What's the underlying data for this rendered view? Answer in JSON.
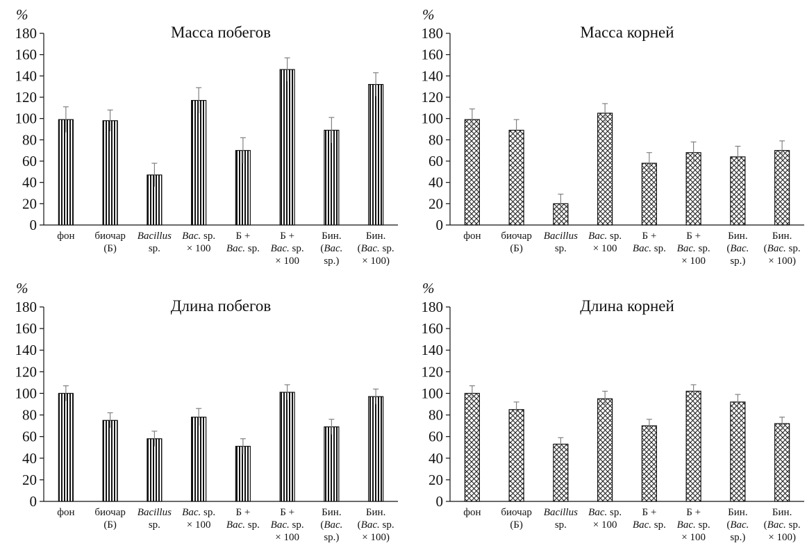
{
  "styles": {
    "bar_fill": "#ffffff",
    "stroke": "#111111",
    "error_bar": "#777777"
  },
  "category_labels": [
    [
      {
        "t": "фон",
        "i": false
      }
    ],
    [
      {
        "t": "биочар",
        "i": false
      },
      {
        "t": "(Б)",
        "i": false
      }
    ],
    [
      {
        "t": "Bacillus",
        "i": true
      },
      {
        "t": "sp.",
        "i": false
      }
    ],
    [
      {
        "t": "Bac.",
        "i": true,
        "r": " sp."
      },
      {
        "t": "× 100",
        "i": false
      }
    ],
    [
      {
        "t": "Б +",
        "i": false
      },
      {
        "t": "Bac.",
        "i": true,
        "r": " sp."
      }
    ],
    [
      {
        "t": "Б +",
        "i": false
      },
      {
        "t": "Bac.",
        "i": true,
        "r": " sp."
      },
      {
        "t": "× 100",
        "i": false
      }
    ],
    [
      {
        "t": "Бин.",
        "i": false
      },
      {
        "t": "(",
        "i": false,
        "r2": "Bac.",
        "r3": ""
      },
      {
        "t": "sp.)",
        "i": false
      }
    ],
    [
      {
        "t": "Бин.",
        "i": false
      },
      {
        "t": "(",
        "i": false,
        "r2": "Bac.",
        "r3": " sp."
      },
      {
        "t": "× 100)",
        "i": false
      }
    ]
  ],
  "chart_data": [
    {
      "type": "bar",
      "title": "Масса побегов",
      "ylabel": "%",
      "ylim": [
        0,
        180
      ],
      "yticks": [
        0,
        20,
        40,
        60,
        80,
        100,
        120,
        140,
        160,
        180
      ],
      "pattern": "vertical-stripes",
      "categories": [
        "фон",
        "биочар (Б)",
        "Bacillus sp.",
        "Bac. sp. × 100",
        "Б + Bac. sp.",
        "Б + Bac. sp. × 100",
        "Бин. (Bac. sp.)",
        "Бин. (Bac. sp. × 100)"
      ],
      "values": [
        99,
        98,
        47,
        117,
        70,
        146,
        89,
        132
      ],
      "errors": [
        12,
        10,
        11,
        12,
        12,
        11,
        12,
        11
      ]
    },
    {
      "type": "bar",
      "title": "Масса корней",
      "ylabel": "%",
      "ylim": [
        0,
        180
      ],
      "yticks": [
        0,
        20,
        40,
        60,
        80,
        100,
        120,
        140,
        160,
        180
      ],
      "pattern": "crosshatch",
      "categories": [
        "фон",
        "биочар (Б)",
        "Bacillus sp.",
        "Bac. sp. × 100",
        "Б + Bac. sp.",
        "Б + Bac. sp. × 100",
        "Бин. (Bac. sp.)",
        "Бин. (Bac. sp. × 100)"
      ],
      "values": [
        99,
        89,
        20,
        105,
        58,
        68,
        64,
        70
      ],
      "errors": [
        10,
        10,
        9,
        9,
        10,
        10,
        10,
        9
      ]
    },
    {
      "type": "bar",
      "title": "Длина побегов",
      "ylabel": "%",
      "ylim": [
        0,
        180
      ],
      "yticks": [
        0,
        20,
        40,
        60,
        80,
        100,
        120,
        140,
        160,
        180
      ],
      "pattern": "vertical-stripes",
      "categories": [
        "фон",
        "биочар (Б)",
        "Bacillus sp.",
        "Bac. sp. × 100",
        "Б + Bac. sp.",
        "Б + Bac. sp. × 100",
        "Бин. (Bac. sp.)",
        "Бин. (Bac. sp. × 100)"
      ],
      "values": [
        100,
        75,
        58,
        78,
        51,
        101,
        69,
        97
      ],
      "errors": [
        7,
        7,
        7,
        8,
        7,
        7,
        7,
        7
      ]
    },
    {
      "type": "bar",
      "title": "Длина корней",
      "ylabel": "%",
      "ylim": [
        0,
        180
      ],
      "yticks": [
        0,
        20,
        40,
        60,
        80,
        100,
        120,
        140,
        160,
        180
      ],
      "pattern": "crosshatch",
      "categories": [
        "фон",
        "биочар (Б)",
        "Bacillus sp.",
        "Bac. sp. × 100",
        "Б + Bac. sp.",
        "Б + Bac. sp. × 100",
        "Бин. (Bac. sp.)",
        "Бин. (Bac. sp. × 100)"
      ],
      "values": [
        100,
        85,
        53,
        95,
        70,
        102,
        92,
        72
      ],
      "errors": [
        7,
        7,
        6,
        7,
        6,
        6,
        7,
        6
      ]
    }
  ]
}
